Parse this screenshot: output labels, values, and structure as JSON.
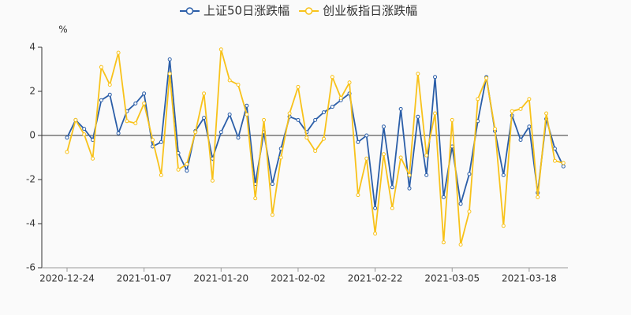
{
  "chart_data": {
    "type": "line",
    "y_unit": "%",
    "categories": [
      "2020-12-24",
      null,
      null,
      null,
      null,
      null,
      null,
      null,
      null,
      "2021-01-07",
      null,
      null,
      null,
      null,
      null,
      null,
      null,
      null,
      "2021-01-20",
      null,
      null,
      null,
      null,
      null,
      null,
      null,
      null,
      "2021-02-02",
      null,
      null,
      null,
      null,
      null,
      null,
      null,
      null,
      "2021-02-22",
      null,
      null,
      null,
      null,
      null,
      null,
      null,
      null,
      "2021-03-05",
      null,
      null,
      null,
      null,
      null,
      null,
      null,
      null,
      "2021-03-18",
      null,
      null,
      null,
      null
    ],
    "series": [
      {
        "name": "上证50日涨跌幅",
        "color": "#2b5ea8",
        "values": [
          -0.1,
          0.7,
          0.3,
          -0.2,
          1.6,
          1.85,
          0.1,
          1.1,
          1.45,
          1.9,
          -0.5,
          -0.3,
          3.45,
          -0.8,
          -1.6,
          0.2,
          0.8,
          -1.05,
          0.15,
          0.95,
          -0.1,
          1.35,
          -2.2,
          0.15,
          -2.2,
          -0.6,
          0.85,
          0.7,
          0.15,
          0.7,
          1.05,
          1.3,
          1.6,
          1.9,
          -0.3,
          0.0,
          -3.3,
          0.4,
          -2.35,
          1.2,
          -2.4,
          0.85,
          -1.8,
          2.65,
          -2.8,
          -0.5,
          -3.1,
          -1.75,
          0.65,
          2.65,
          0.2,
          -1.8,
          0.9,
          -0.2,
          0.4,
          -2.6,
          0.75,
          -0.6,
          -1.4
        ]
      },
      {
        "name": "创业板指日涨跌幅",
        "color": "#f8c21a",
        "values": [
          -0.75,
          0.7,
          0.05,
          -1.05,
          3.1,
          2.3,
          3.75,
          0.65,
          0.55,
          1.45,
          -0.2,
          -1.8,
          2.8,
          -1.55,
          -1.3,
          0.15,
          1.9,
          -2.05,
          3.9,
          2.5,
          2.3,
          0.95,
          -2.85,
          0.7,
          -3.6,
          -1.0,
          1.0,
          2.2,
          -0.1,
          -0.7,
          -0.15,
          2.65,
          1.7,
          2.4,
          -2.7,
          -1.05,
          -4.45,
          -0.85,
          -3.3,
          -1.0,
          -1.8,
          2.8,
          -0.9,
          1.0,
          -4.85,
          0.7,
          -4.95,
          -3.45,
          1.65,
          2.6,
          0.3,
          -4.1,
          1.1,
          1.2,
          1.65,
          -2.8,
          1.0,
          -1.15,
          -1.25
        ]
      }
    ],
    "ylim": [
      -6,
      4
    ],
    "yticks": [
      -6,
      -4,
      -2,
      0,
      2,
      4
    ],
    "grid": false
  }
}
